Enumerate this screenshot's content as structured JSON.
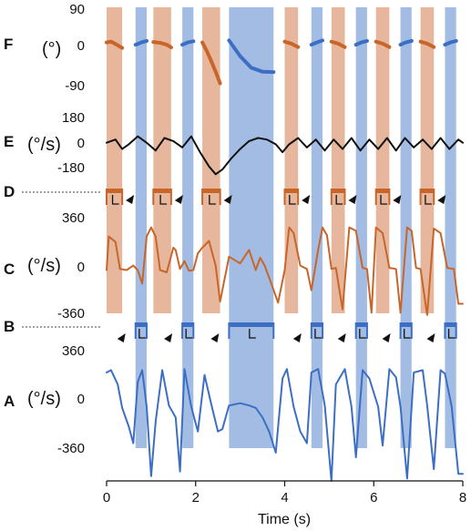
{
  "chart_data": {
    "type": "line",
    "xlabel": "Time (s)",
    "x_ticks": [
      "0",
      "2",
      "4",
      "6",
      "8"
    ],
    "xlim": [
      0,
      8
    ],
    "colors": {
      "orange": "#C8662A",
      "blue": "#3C6FC4",
      "black": "#111111",
      "orange_band": "#E6B79C",
      "blue_band": "#9DB8E3"
    },
    "orange_intervals": [
      [
        0.0,
        0.35
      ],
      [
        1.05,
        1.45
      ],
      [
        2.15,
        2.55
      ],
      [
        4.0,
        4.3
      ],
      [
        5.05,
        5.35
      ],
      [
        6.05,
        6.35
      ],
      [
        7.05,
        7.35
      ]
    ],
    "blue_intervals": [
      [
        0.65,
        0.9
      ],
      [
        1.7,
        1.95
      ],
      [
        2.75,
        3.75
      ],
      [
        4.6,
        4.85
      ],
      [
        5.6,
        5.85
      ],
      [
        6.6,
        6.85
      ],
      [
        7.6,
        7.85
      ]
    ],
    "panels": {
      "F": {
        "letter": "F",
        "unit": "(°)",
        "ticks": [
          "90",
          "0",
          "-90"
        ],
        "ylim": [
          -120,
          90
        ],
        "series": [
          {
            "color": "orange",
            "x": [
              0.0,
              0.1,
              0.2,
              0.35
            ],
            "y": [
              0,
              2,
              -4,
              -14
            ]
          },
          {
            "color": "blue",
            "x": [
              0.65,
              0.78,
              0.9
            ],
            "y": [
              -6,
              0,
              4
            ]
          },
          {
            "color": "orange",
            "x": [
              1.05,
              1.2,
              1.35,
              1.45
            ],
            "y": [
              1,
              -1,
              -6,
              -13
            ]
          },
          {
            "color": "blue",
            "x": [
              1.7,
              1.82,
              1.95
            ],
            "y": [
              -6,
              0,
              3
            ]
          },
          {
            "color": "orange",
            "x": [
              2.15,
              2.25,
              2.35,
              2.45,
              2.55
            ],
            "y": [
              0,
              -22,
              -48,
              -75,
              -105
            ]
          },
          {
            "color": "blue",
            "x": [
              2.75,
              3.0,
              3.25,
              3.5,
              3.75
            ],
            "y": [
              5,
              -35,
              -65,
              -75,
              -76
            ]
          },
          {
            "color": "orange",
            "x": [
              4.0,
              4.15,
              4.3
            ],
            "y": [
              2,
              -3,
              -12
            ]
          },
          {
            "color": "blue",
            "x": [
              4.6,
              4.72,
              4.85
            ],
            "y": [
              -6,
              0,
              5
            ]
          },
          {
            "color": "orange",
            "x": [
              5.05,
              5.2,
              5.35
            ],
            "y": [
              2,
              -3,
              -12
            ]
          },
          {
            "color": "blue",
            "x": [
              5.6,
              5.72,
              5.85
            ],
            "y": [
              -6,
              0,
              4
            ]
          },
          {
            "color": "orange",
            "x": [
              6.05,
              6.2,
              6.35
            ],
            "y": [
              2,
              -3,
              -12
            ]
          },
          {
            "color": "blue",
            "x": [
              6.6,
              6.72,
              6.85
            ],
            "y": [
              -6,
              0,
              4
            ]
          },
          {
            "color": "orange",
            "x": [
              7.05,
              7.2,
              7.35
            ],
            "y": [
              2,
              -3,
              -12
            ]
          },
          {
            "color": "blue",
            "x": [
              7.6,
              7.72,
              7.85
            ],
            "y": [
              -6,
              0,
              4
            ]
          }
        ]
      },
      "E": {
        "letter": "E",
        "unit": "(°/s)",
        "ticks": [
          "180",
          "0",
          "-180"
        ],
        "ylim": [
          -250,
          200
        ],
        "series": [
          {
            "color": "black",
            "x": [
              0.0,
              0.2,
              0.35,
              0.5,
              0.7,
              0.9,
              1.1,
              1.3,
              1.5,
              1.7,
              1.9,
              2.1,
              2.3,
              2.45,
              2.6,
              2.8,
              3.0,
              3.2,
              3.4,
              3.6,
              3.8,
              3.95,
              4.1,
              4.3,
              4.5,
              4.7,
              4.9,
              5.1,
              5.3,
              5.5,
              5.7,
              5.9,
              6.1,
              6.3,
              6.5,
              6.7,
              6.9,
              7.1,
              7.3,
              7.5,
              7.7,
              7.9,
              8.0
            ],
            "y": [
              0,
              20,
              -40,
              -10,
              40,
              0,
              -50,
              30,
              10,
              -30,
              40,
              -60,
              -150,
              -200,
              -170,
              -100,
              -40,
              10,
              30,
              20,
              -10,
              -60,
              -10,
              30,
              -30,
              20,
              -50,
              20,
              -40,
              30,
              -50,
              20,
              -40,
              30,
              -50,
              30,
              -30,
              20,
              -40,
              30,
              -40,
              20,
              0
            ]
          }
        ]
      },
      "C": {
        "letter": "C",
        "unit": "(°/s)",
        "ticks": [
          "360",
          "0",
          "-360"
        ],
        "ylim": [
          -450,
          540
        ],
        "marker_letter": "D",
        "series": [
          {
            "color": "orange",
            "x": [
              0.0,
              0.05,
              0.2,
              0.3,
              0.45,
              0.6,
              0.7,
              0.8,
              0.9,
              1.0,
              1.1,
              1.2,
              1.35,
              1.5,
              1.55,
              1.65,
              1.75,
              1.85,
              1.95,
              2.05,
              2.15,
              2.3,
              2.45,
              2.55,
              2.75,
              3.0,
              3.2,
              3.35,
              3.45,
              3.55,
              3.7,
              3.85,
              4.0,
              4.1,
              4.2,
              4.35,
              4.5,
              4.6,
              4.75,
              4.85,
              4.95,
              5.05,
              5.15,
              5.3,
              5.45,
              5.6,
              5.75,
              5.85,
              5.95,
              6.05,
              6.2,
              6.35,
              6.5,
              6.6,
              6.75,
              6.85,
              6.95,
              7.05,
              7.2,
              7.35,
              7.5,
              7.65,
              7.8,
              7.9,
              8.0
            ],
            "y": [
              0,
              300,
              250,
              10,
              0,
              40,
              0,
              -120,
              300,
              380,
              300,
              0,
              -20,
              200,
              180,
              10,
              80,
              -5,
              0,
              150,
              200,
              260,
              40,
              -280,
              120,
              60,
              180,
              0,
              110,
              40,
              -120,
              -290,
              0,
              380,
              330,
              40,
              10,
              -180,
              180,
              380,
              310,
              10,
              20,
              -350,
              380,
              350,
              20,
              10,
              -380,
              380,
              330,
              20,
              10,
              -380,
              380,
              350,
              20,
              10,
              -400,
              370,
              330,
              20,
              10,
              -300,
              -300
            ]
          }
        ]
      },
      "A": {
        "letter": "A",
        "unit": "(°/s)",
        "ticks": [
          "360",
          "0",
          "-360"
        ],
        "ylim": [
          -620,
          540
        ],
        "marker_letter": "B",
        "series": [
          {
            "color": "blue",
            "x": [
              0.0,
              0.1,
              0.25,
              0.35,
              0.5,
              0.6,
              0.7,
              0.8,
              0.9,
              1.0,
              1.1,
              1.25,
              1.4,
              1.55,
              1.65,
              1.75,
              1.9,
              2.05,
              2.2,
              2.35,
              2.5,
              2.6,
              2.75,
              3.0,
              3.2,
              3.35,
              3.5,
              3.65,
              3.8,
              3.95,
              4.05,
              4.2,
              4.35,
              4.5,
              4.6,
              4.75,
              4.9,
              5.05,
              5.15,
              5.35,
              5.5,
              5.6,
              5.75,
              5.9,
              6.1,
              6.2,
              6.35,
              6.5,
              6.6,
              6.75,
              6.9,
              7.1,
              7.2,
              7.35,
              7.5,
              7.6,
              7.75,
              7.9,
              8.0
            ],
            "y": [
              300,
              320,
              200,
              0,
              -160,
              -300,
              220,
              320,
              10,
              -580,
              -120,
              320,
              20,
              -80,
              -540,
              330,
              10,
              -200,
              280,
              30,
              -200,
              -180,
              20,
              40,
              20,
              0,
              -80,
              -200,
              -380,
              250,
              330,
              10,
              -200,
              -300,
              300,
              330,
              20,
              -620,
              200,
              330,
              10,
              -420,
              320,
              250,
              10,
              -320,
              330,
              260,
              10,
              -600,
              300,
              320,
              20,
              -520,
              320,
              290,
              10,
              -560,
              -560
            ]
          }
        ]
      }
    }
  }
}
